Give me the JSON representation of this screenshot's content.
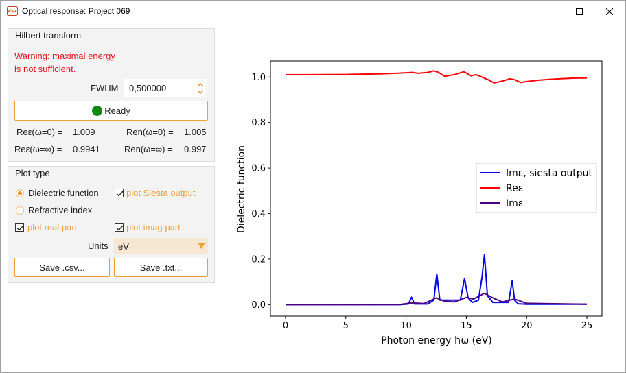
{
  "window": {
    "title": "Optical response: Project 069",
    "controls": {
      "minimize": "minimize",
      "maximize": "maximize",
      "close": "close"
    }
  },
  "hilbert": {
    "title": "Hilbert transform",
    "warning_line1": "Warning: maximal energy",
    "warning_line2": "is not sufficient.",
    "fwhm_label": "FWHM",
    "fwhm_value": "0,500000",
    "status_label": "Ready",
    "status_color": "#118811",
    "re_eps_w0_label": "Reε(ω=0) =",
    "re_eps_w0_value": "1.009",
    "re_n_w0_label": "Ren(ω=0) =",
    "re_n_w0_value": "1.005",
    "re_eps_winf_label": "Reε(ω=∞) =",
    "re_eps_winf_value": "0.9941",
    "re_n_winf_label": "Ren(ω=∞) =",
    "re_n_winf_value": "0.997"
  },
  "plot_type": {
    "title": "Plot type",
    "dielectric_label": "Dielectric function",
    "dielectric_selected": true,
    "refractive_label": "Refractive index",
    "refractive_selected": false,
    "siesta_label": "plot Siesta output",
    "siesta_checked": true,
    "real_label": "plot real part",
    "real_checked": true,
    "imag_label": "plot imag part",
    "imag_checked": true,
    "units_label": "Units",
    "units_value": "eV",
    "save_csv_label": "Save .csv...",
    "save_txt_label": "Save .txt..."
  },
  "accent_color": "#f0a030",
  "chart_data": {
    "type": "line",
    "title": "",
    "xlabel": "Photon energy ħω (eV)",
    "ylabel": "Dielectric function",
    "xlim": [
      -1.25,
      26.25
    ],
    "ylim": [
      -0.05,
      1.07
    ],
    "xticks": [
      0,
      5,
      10,
      15,
      20,
      25
    ],
    "yticks": [
      0.0,
      0.2,
      0.4,
      0.6,
      0.8,
      1.0
    ],
    "xtick_labels": [
      "0",
      "5",
      "10",
      "15",
      "20",
      "25"
    ],
    "ytick_labels": [
      "0.0",
      "0.2",
      "0.4",
      "0.6",
      "0.8",
      "1.0"
    ],
    "grid": false,
    "legend_position": "center-right",
    "series": [
      {
        "name": "Imε, siesta output",
        "color": "#0000ee",
        "x": [
          0,
          9.5,
          10.2,
          10.45,
          10.7,
          11.8,
          12.3,
          12.55,
          12.8,
          14.5,
          14.85,
          15.15,
          15.5,
          16.0,
          16.3,
          16.5,
          16.75,
          17.2,
          18.5,
          18.8,
          19.0,
          19.3,
          20,
          25
        ],
        "y": [
          0,
          0,
          0.003,
          0.033,
          0.003,
          0.003,
          0.02,
          0.135,
          0.02,
          0.02,
          0.115,
          0.03,
          0.01,
          0.02,
          0.12,
          0.22,
          0.04,
          0.01,
          0.01,
          0.105,
          0.02,
          0.004,
          0.002,
          0.002
        ]
      },
      {
        "name": "Reε",
        "color": "#ff0000",
        "x": [
          0,
          2,
          5,
          8,
          9.5,
          10.5,
          11.0,
          11.8,
          12.3,
          12.7,
          13.2,
          14.0,
          14.8,
          15.4,
          15.8,
          16.3,
          16.8,
          17.3,
          18.0,
          18.6,
          19.0,
          19.5,
          20,
          21,
          22,
          23,
          24,
          25
        ],
        "y": [
          1.01,
          1.01,
          1.011,
          1.014,
          1.017,
          1.02,
          1.016,
          1.02,
          1.027,
          1.02,
          1.003,
          1.01,
          1.023,
          1.005,
          1.01,
          1.0,
          0.988,
          0.974,
          0.982,
          0.992,
          0.988,
          0.976,
          0.98,
          0.986,
          0.99,
          0.993,
          0.995,
          0.996
        ]
      },
      {
        "name": "Imε",
        "color": "#4b0082",
        "x": [
          0,
          9.5,
          10.45,
          11.5,
          12.5,
          13.2,
          14.0,
          15.0,
          15.6,
          16.5,
          17.2,
          18.0,
          19.0,
          20,
          25
        ],
        "y": [
          0,
          0.001,
          0.008,
          0.005,
          0.03,
          0.015,
          0.012,
          0.032,
          0.025,
          0.05,
          0.03,
          0.012,
          0.025,
          0.006,
          0.002
        ]
      }
    ]
  }
}
